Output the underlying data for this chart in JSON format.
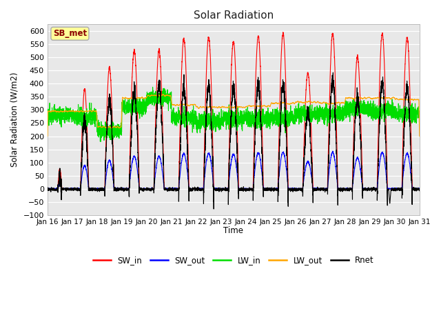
{
  "title": "Solar Radiation",
  "ylabel": "Solar Radiation (W/m2)",
  "xlabel": "Time",
  "ylim": [
    -100,
    625
  ],
  "n_days": 15,
  "points_per_day": 288,
  "fig_facecolor": "#ffffff",
  "plot_facecolor": "#e8e8e8",
  "grid_color": "#ffffff",
  "station_label": "SB_met",
  "station_label_color": "#8b0000",
  "station_box_facecolor": "#ffff99",
  "station_box_edgecolor": "#aaaaaa",
  "series": {
    "SW_in": {
      "color": "#ff0000",
      "lw": 0.8
    },
    "SW_out": {
      "color": "#0000ff",
      "lw": 0.8
    },
    "LW_in": {
      "color": "#00dd00",
      "lw": 0.8
    },
    "LW_out": {
      "color": "#ffa500",
      "lw": 0.8
    },
    "Rnet": {
      "color": "#000000",
      "lw": 0.8
    }
  },
  "sw_in_peaks": [
    75,
    380,
    460,
    525,
    525,
    570,
    575,
    560,
    580,
    590,
    440,
    590,
    500,
    590,
    575
  ],
  "sw_in_daylens": [
    4,
    8,
    9,
    10,
    10,
    10,
    10,
    10,
    10,
    10,
    10,
    10,
    10,
    10,
    10
  ],
  "lw_out_vals": [
    295,
    295,
    235,
    345,
    355,
    320,
    310,
    310,
    315,
    325,
    330,
    325,
    345,
    345,
    340
  ],
  "lw_in_base_vals": [
    280,
    275,
    220,
    310,
    345,
    270,
    255,
    265,
    265,
    270,
    285,
    285,
    305,
    295,
    285
  ]
}
